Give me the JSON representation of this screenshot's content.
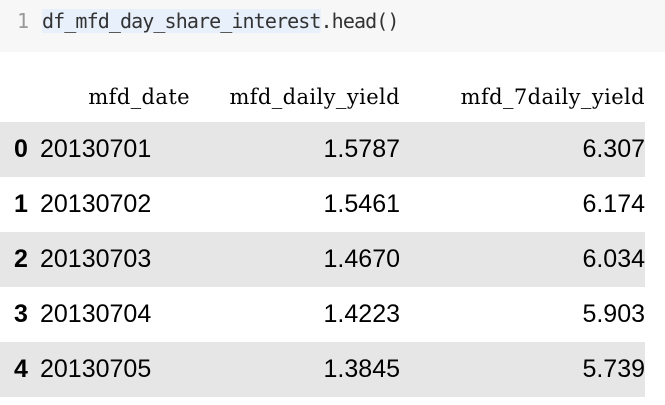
{
  "code": {
    "line_number": "1",
    "variable": "df_mfd_day_share_interest",
    "call": ".head()"
  },
  "table": {
    "columns": [
      "mfd_date",
      "mfd_daily_yield",
      "mfd_7daily_yield"
    ],
    "rows": [
      {
        "index": "0",
        "mfd_date": "20130701",
        "mfd_daily_yield": "1.5787",
        "mfd_7daily_yield": "6.307"
      },
      {
        "index": "1",
        "mfd_date": "20130702",
        "mfd_daily_yield": "1.5461",
        "mfd_7daily_yield": "6.174"
      },
      {
        "index": "2",
        "mfd_date": "20130703",
        "mfd_daily_yield": "1.4670",
        "mfd_7daily_yield": "6.034"
      },
      {
        "index": "3",
        "mfd_date": "20130704",
        "mfd_daily_yield": "1.4223",
        "mfd_7daily_yield": "5.903"
      },
      {
        "index": "4",
        "mfd_date": "20130705",
        "mfd_daily_yield": "1.3845",
        "mfd_7daily_yield": "5.739"
      }
    ]
  }
}
